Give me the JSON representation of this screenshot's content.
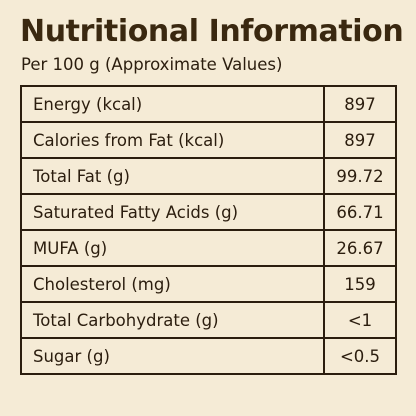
{
  "header": {
    "title": "Nutritional Information",
    "subtitle": "Per 100 g (Approximate Values)"
  },
  "table": {
    "rows": [
      {
        "label": "Energy (kcal)",
        "value": "897"
      },
      {
        "label": "Calories from Fat (kcal)",
        "value": "897"
      },
      {
        "label": "Total Fat (g)",
        "value": "99.72"
      },
      {
        "label": "Saturated Fatty Acids (g)",
        "value": "66.71"
      },
      {
        "label": "MUFA (g)",
        "value": "26.67"
      },
      {
        "label": "Cholesterol (mg)",
        "value": "159"
      },
      {
        "label": "Total Carbohydrate (g)",
        "value": "<1"
      },
      {
        "label": "Sugar (g)",
        "value": "<0.5"
      }
    ]
  },
  "colors": {
    "background": "#f5ebd6",
    "text": "#2b1d0e",
    "title": "#3a2810",
    "border": "#2b1d0e"
  }
}
